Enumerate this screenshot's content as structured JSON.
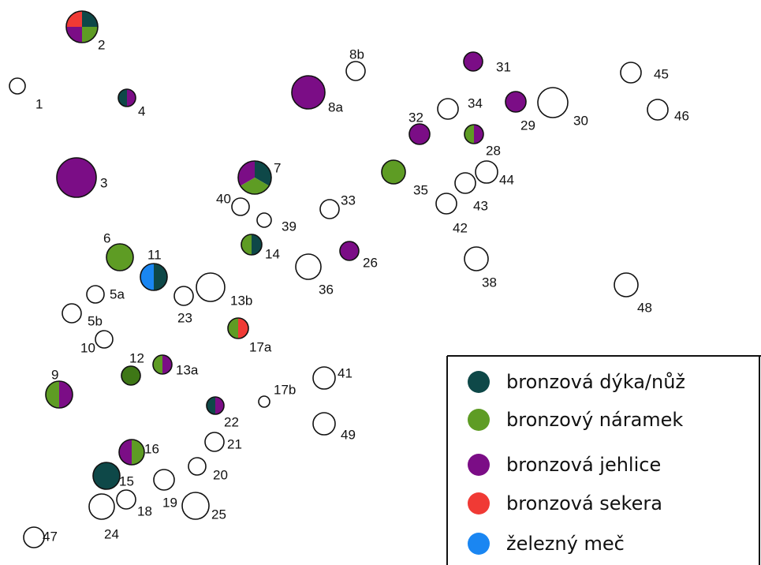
{
  "colors": {
    "dagger": "#0e4848",
    "bracelet": "#5e9c24",
    "bracelet_dark": "#3e7716",
    "pin": "#7b0d86",
    "axe": "#f03a35",
    "sword": "#1a86f2",
    "empty": "#ffffff",
    "outline": "#111111"
  },
  "legend": {
    "items": [
      {
        "key": "dagger",
        "label": "bronzová dýka/nůž"
      },
      {
        "key": "bracelet",
        "label": "bronzový náramek"
      },
      {
        "key": "pin",
        "label": "bronzová jehlice"
      },
      {
        "key": "axe",
        "label": "bronzová sekera"
      },
      {
        "key": "sword",
        "label": "železný meč"
      }
    ]
  },
  "graves": [
    {
      "id": "1",
      "finds": []
    },
    {
      "id": "2",
      "finds": [
        "dagger",
        "bracelet",
        "pin",
        "axe"
      ]
    },
    {
      "id": "3",
      "finds": [
        "pin"
      ]
    },
    {
      "id": "4",
      "finds": [
        "dagger",
        "pin"
      ]
    },
    {
      "id": "5a",
      "finds": []
    },
    {
      "id": "5b",
      "finds": []
    },
    {
      "id": "6",
      "finds": [
        "bracelet"
      ]
    },
    {
      "id": "7",
      "finds": [
        "dagger",
        "bracelet",
        "pin"
      ]
    },
    {
      "id": "8a",
      "finds": [
        "pin"
      ]
    },
    {
      "id": "8b",
      "finds": []
    },
    {
      "id": "9",
      "finds": [
        "bracelet",
        "pin"
      ]
    },
    {
      "id": "10",
      "finds": []
    },
    {
      "id": "11",
      "finds": [
        "sword",
        "dagger"
      ]
    },
    {
      "id": "12",
      "finds": [
        "bracelet_dark"
      ]
    },
    {
      "id": "13a",
      "finds": [
        "bracelet",
        "pin"
      ]
    },
    {
      "id": "13b",
      "finds": []
    },
    {
      "id": "14",
      "finds": [
        "bracelet",
        "dagger"
      ]
    },
    {
      "id": "15",
      "finds": [
        "dagger"
      ]
    },
    {
      "id": "16",
      "finds": [
        "pin",
        "bracelet"
      ]
    },
    {
      "id": "17a",
      "finds": [
        "bracelet",
        "axe"
      ]
    },
    {
      "id": "17b",
      "finds": []
    },
    {
      "id": "18",
      "finds": []
    },
    {
      "id": "19",
      "finds": []
    },
    {
      "id": "20",
      "finds": []
    },
    {
      "id": "21",
      "finds": []
    },
    {
      "id": "22",
      "finds": [
        "dagger",
        "pin"
      ]
    },
    {
      "id": "23",
      "finds": []
    },
    {
      "id": "24",
      "finds": []
    },
    {
      "id": "25",
      "finds": []
    },
    {
      "id": "26",
      "finds": [
        "pin"
      ]
    },
    {
      "id": "28",
      "finds": [
        "bracelet",
        "pin"
      ]
    },
    {
      "id": "29",
      "finds": [
        "pin"
      ]
    },
    {
      "id": "30",
      "finds": []
    },
    {
      "id": "31",
      "finds": [
        "pin"
      ]
    },
    {
      "id": "32",
      "finds": [
        "pin"
      ]
    },
    {
      "id": "33",
      "finds": []
    },
    {
      "id": "34",
      "finds": []
    },
    {
      "id": "35",
      "finds": [
        "bracelet"
      ]
    },
    {
      "id": "36",
      "finds": []
    },
    {
      "id": "38",
      "finds": []
    },
    {
      "id": "39",
      "finds": []
    },
    {
      "id": "40",
      "finds": []
    },
    {
      "id": "41",
      "finds": []
    },
    {
      "id": "42",
      "finds": []
    },
    {
      "id": "43",
      "finds": []
    },
    {
      "id": "44",
      "finds": []
    },
    {
      "id": "45",
      "finds": []
    },
    {
      "id": "46",
      "finds": []
    },
    {
      "id": "47",
      "finds": []
    },
    {
      "id": "48",
      "finds": []
    },
    {
      "id": "49",
      "finds": []
    }
  ]
}
